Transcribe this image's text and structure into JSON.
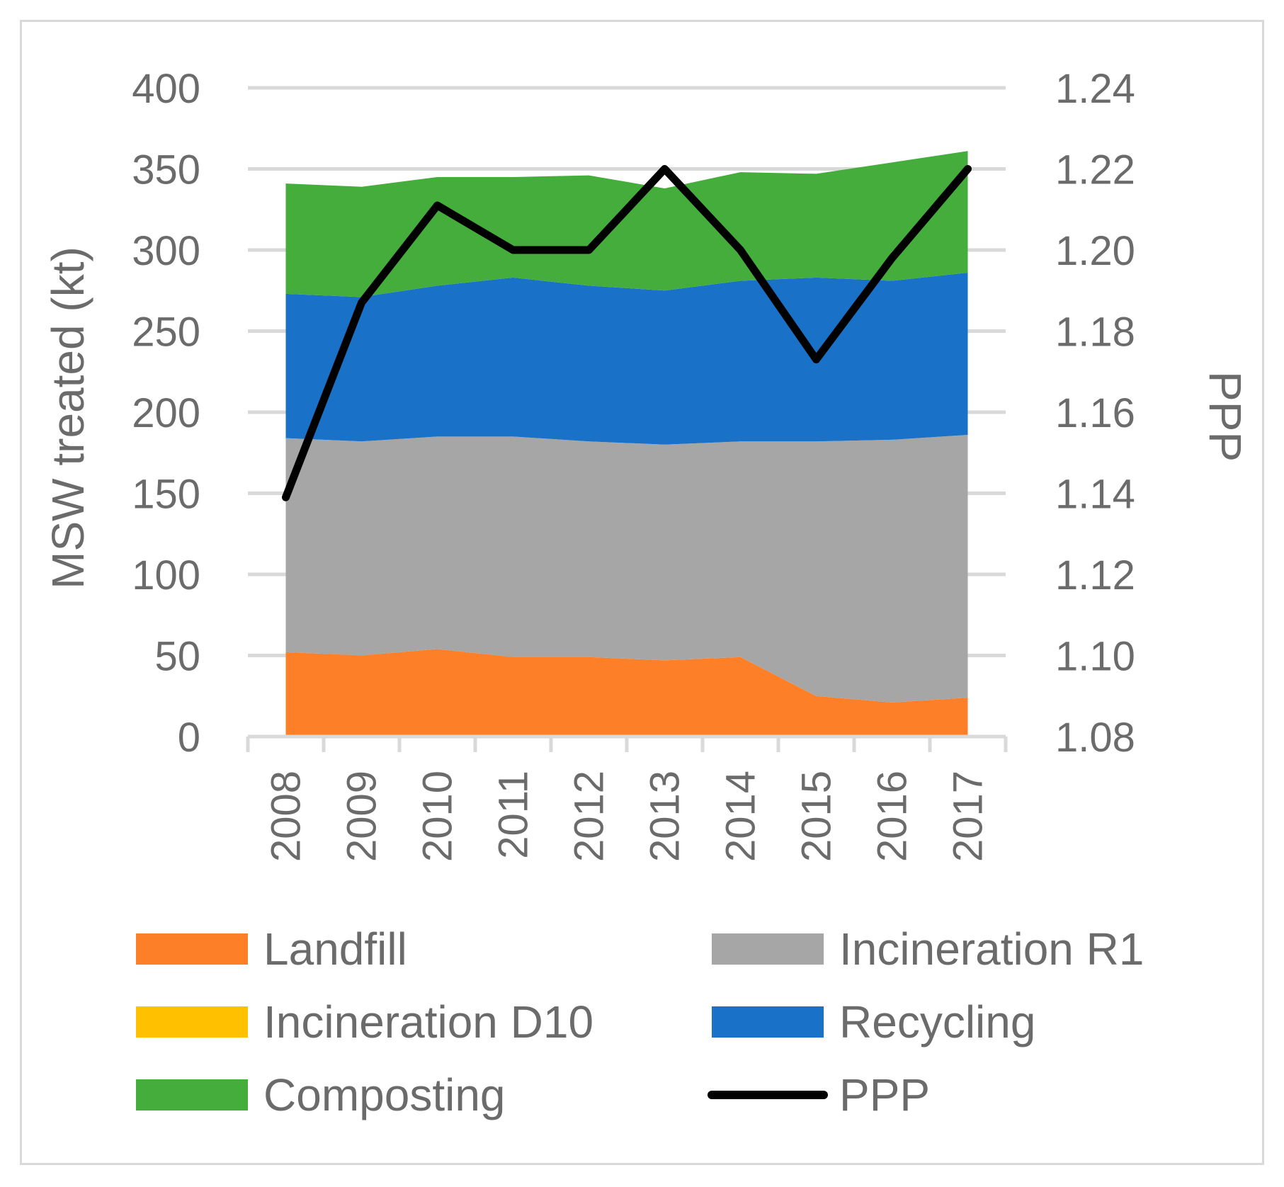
{
  "chart_data": {
    "type": "area",
    "title": "",
    "xlabel": "",
    "ylabel": "MSW treated (kt)",
    "y2label": "PPP",
    "ylim": [
      0,
      400
    ],
    "y2lim": [
      1.08,
      1.24
    ],
    "categories": [
      "2008",
      "2009",
      "2010",
      "2011",
      "2012",
      "2013",
      "2014",
      "2015",
      "2016",
      "2017"
    ],
    "y_ticks": [
      "0",
      "50",
      "100",
      "150",
      "200",
      "250",
      "300",
      "350",
      "400"
    ],
    "y2_ticks": [
      "1.08",
      "1.10",
      "1.12",
      "1.14",
      "1.16",
      "1.18",
      "1.20",
      "1.22",
      "1.24"
    ],
    "stacked": true,
    "series": [
      {
        "name": "Landfill",
        "color": "#fd7f28",
        "values": [
          52,
          50,
          54,
          49,
          49,
          47,
          49,
          25,
          21,
          24
        ]
      },
      {
        "name": "Incineration R1",
        "color": "#a6a6a6",
        "values": [
          132,
          132,
          131,
          136,
          133,
          133,
          133,
          157,
          162,
          162
        ]
      },
      {
        "name": "Incineration D10",
        "color": "#ffc000",
        "values": [
          0,
          0,
          0,
          0,
          0,
          0,
          0,
          0,
          0,
          0
        ]
      },
      {
        "name": "Recycling",
        "color": "#1a72c8",
        "values": [
          89,
          89,
          93,
          98,
          96,
          95,
          99,
          101,
          98,
          100
        ]
      },
      {
        "name": "Composting",
        "color": "#44ad3c",
        "values": [
          68,
          68,
          67,
          62,
          68,
          63,
          67,
          64,
          73,
          75
        ]
      }
    ],
    "line_series": {
      "name": "PPP",
      "color": "#000000",
      "axis": "right",
      "values": [
        1.139,
        1.187,
        1.211,
        1.2,
        1.2,
        1.22,
        1.2,
        1.173,
        1.198,
        1.22
      ]
    },
    "legend": {
      "position": "bottom",
      "items": [
        {
          "label": "Landfill",
          "color": "#fd7f28",
          "kind": "area"
        },
        {
          "label": "Incineration R1",
          "color": "#a6a6a6",
          "kind": "area"
        },
        {
          "label": "Incineration D10",
          "color": "#ffc000",
          "kind": "area"
        },
        {
          "label": "Recycling",
          "color": "#1a72c8",
          "kind": "area"
        },
        {
          "label": "Composting",
          "color": "#44ad3c",
          "kind": "area"
        },
        {
          "label": "PPP",
          "color": "#000000",
          "kind": "line"
        }
      ]
    },
    "grid": true,
    "gridline_color": "#d9d9d9"
  }
}
